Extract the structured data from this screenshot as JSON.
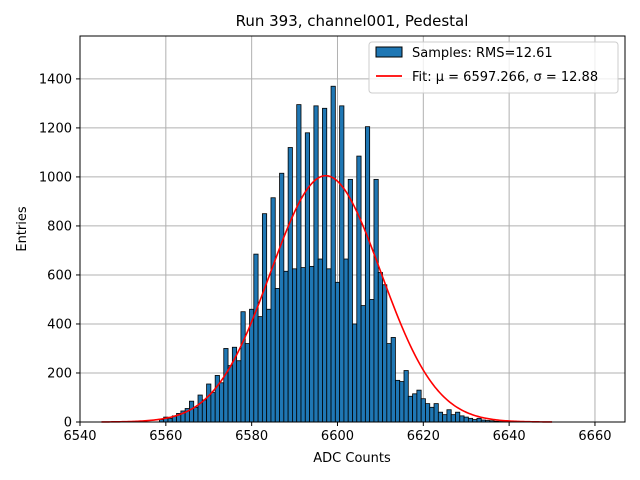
{
  "chart_data": {
    "type": "bar",
    "title": "Run 393, channel001, Pedestal",
    "xlabel": "ADC Counts",
    "ylabel": "Entries",
    "xlim": [
      6540,
      6667
    ],
    "ylim": [
      0,
      1575
    ],
    "xticks": [
      6540,
      6560,
      6580,
      6600,
      6620,
      6640,
      6660
    ],
    "yticks": [
      0,
      200,
      400,
      600,
      800,
      1000,
      1200,
      1400
    ],
    "grid": true,
    "legend_position": "top-right",
    "colors": {
      "bars": "#1f77b4",
      "bar_edge": "#000000",
      "fit": "#ff0000"
    },
    "legend": {
      "hist_label": "Samples: RMS=12.61",
      "fit_label": "Fit: μ = 6597.266, σ = 12.88"
    },
    "histogram": {
      "bin_width": 1,
      "x": [
        6559,
        6560,
        6561,
        6562,
        6563,
        6564,
        6565,
        6566,
        6567,
        6568,
        6569,
        6570,
        6571,
        6572,
        6573,
        6574,
        6575,
        6576,
        6577,
        6578,
        6579,
        6580,
        6581,
        6582,
        6583,
        6584,
        6585,
        6586,
        6587,
        6588,
        6589,
        6590,
        6591,
        6592,
        6593,
        6594,
        6595,
        6596,
        6597,
        6598,
        6599,
        6600,
        6601,
        6602,
        6603,
        6604,
        6605,
        6606,
        6607,
        6608,
        6609,
        6610,
        6611,
        6612,
        6613,
        6614,
        6615,
        6616,
        6617,
        6618,
        6619,
        6620,
        6621,
        6622,
        6623,
        6624,
        6625,
        6626,
        6627,
        6628,
        6629,
        6630,
        6631,
        6632,
        6633,
        6634,
        6635,
        6636,
        6637,
        6638,
        6639,
        6640
      ],
      "values": [
        10,
        20,
        15,
        25,
        35,
        45,
        55,
        85,
        60,
        110,
        90,
        155,
        120,
        190,
        160,
        300,
        230,
        305,
        250,
        450,
        320,
        460,
        685,
        430,
        850,
        460,
        915,
        545,
        1015,
        615,
        1120,
        625,
        1295,
        630,
        1180,
        635,
        1290,
        665,
        1280,
        625,
        1370,
        570,
        1290,
        665,
        990,
        400,
        1085,
        475,
        1205,
        500,
        990,
        610,
        560,
        320,
        345,
        170,
        165,
        210,
        105,
        115,
        130,
        95,
        75,
        60,
        75,
        40,
        30,
        50,
        30,
        40,
        25,
        20,
        15,
        10,
        15,
        8,
        6,
        5,
        3,
        2,
        2,
        1
      ]
    },
    "fit": {
      "type": "gaussian",
      "mu": 6597.266,
      "sigma": 12.88,
      "amplitude": 1005,
      "x_range": [
        6545,
        6650
      ]
    }
  }
}
